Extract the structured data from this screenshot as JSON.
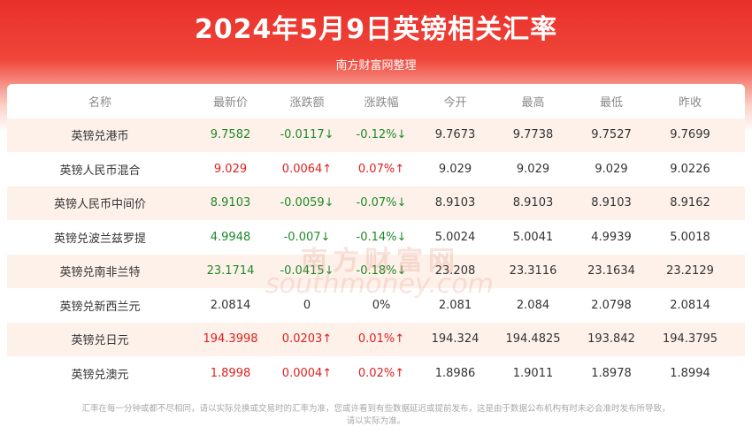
{
  "title": "2024年5月9日英镑相关汇率",
  "subtitle": "南方财富网整理",
  "headers": [
    "名称",
    "最新价",
    "涨跌额",
    "涨跌幅",
    "今开",
    "最高",
    "最低",
    "昨收"
  ],
  "rows": [
    {
      "name": "英镑兑港币",
      "price": "9.7582",
      "change": "-0.0117↓",
      "pct": "-0.12%↓",
      "open": "9.7673",
      "high": "9.7738",
      "low": "9.7527",
      "prev": "9.7699",
      "trend": "down"
    },
    {
      "name": "英镑人民币混合",
      "price": "9.029",
      "change": "0.0064↑",
      "pct": "0.07%↑",
      "open": "9.029",
      "high": "9.029",
      "low": "9.029",
      "prev": "9.0226",
      "trend": "up"
    },
    {
      "name": "英镑人民币中间价",
      "price": "8.9103",
      "change": "-0.0059↓",
      "pct": "-0.07%↓",
      "open": "8.9103",
      "high": "8.9103",
      "low": "8.9103",
      "prev": "8.9162",
      "trend": "down"
    },
    {
      "name": "英镑兑波兰兹罗提",
      "price": "4.9948",
      "change": "-0.007↓",
      "pct": "-0.14%↓",
      "open": "5.0024",
      "high": "5.0041",
      "low": "4.9939",
      "prev": "5.0018",
      "trend": "down"
    },
    {
      "name": "英镑兑南非兰特",
      "price": "23.1714",
      "change": "-0.0415↓",
      "pct": "-0.18%↓",
      "open": "23.208",
      "high": "23.3116",
      "low": "23.1634",
      "prev": "23.2129",
      "trend": "down"
    },
    {
      "name": "英镑兑新西兰元",
      "price": "2.0814",
      "change": "0",
      "pct": "0%",
      "open": "2.081",
      "high": "2.084",
      "low": "2.0798",
      "prev": "2.0814",
      "trend": "flat"
    },
    {
      "name": "英镑兑日元",
      "price": "194.3998",
      "change": "0.0203↑",
      "pct": "0.01%↑",
      "open": "194.324",
      "high": "194.4825",
      "low": "193.842",
      "prev": "194.3795",
      "trend": "up"
    },
    {
      "name": "英镑兑澳元",
      "price": "1.8998",
      "change": "0.0004↑",
      "pct": "0.02%↑",
      "open": "1.8986",
      "high": "1.9011",
      "low": "1.8978",
      "prev": "1.8994",
      "trend": "up"
    }
  ],
  "watermark": {
    "cn": "南方财富网",
    "en": "southmoney.com"
  },
  "footer": {
    "line1": "汇率在每一分钟或都不尽相同，请以实际兑换或交易时的汇率为准，您或许看到有些数据延迟或提前发布，这是由于数据公布机构有时未必会准时发布所导致，",
    "line2": "请以实际为准。"
  },
  "colors": {
    "up": "#e02020",
    "down": "#1f8a2a",
    "banner": "#e8302a",
    "row_shade": "#fdf1ea"
  }
}
